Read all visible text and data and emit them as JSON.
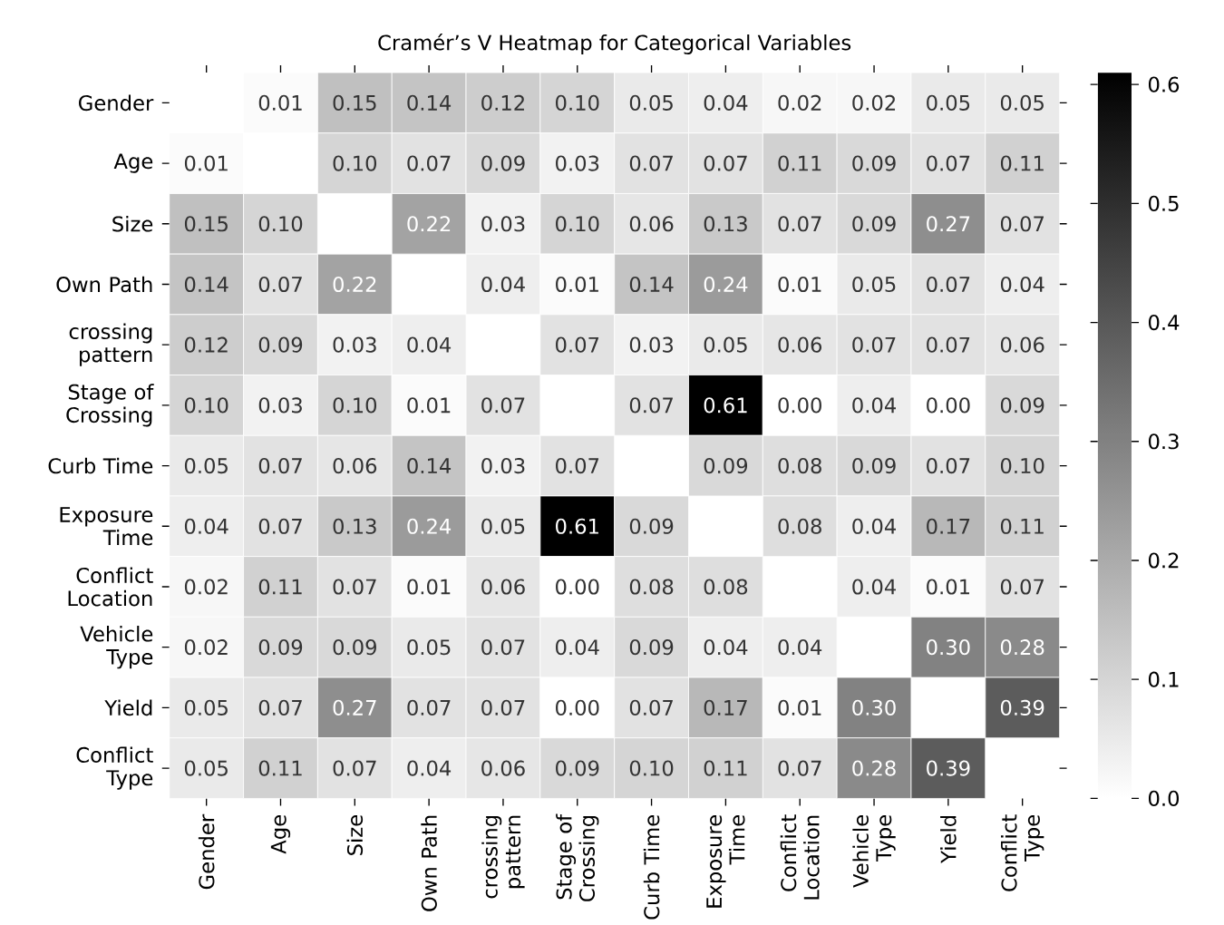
{
  "chart_data": {
    "type": "heatmap",
    "title": "Cramér’s V Heatmap for Categorical Variables",
    "categories": [
      "Gender",
      "Age",
      "Size",
      "Own Path",
      "crossing pattern",
      "Stage of Crossing",
      "Curb Time",
      "Exposure Time",
      "Conflict Location",
      "Vehicle Type",
      "Yield",
      "Conflict Type"
    ],
    "y_categories": [
      "Gender",
      "Age",
      "Size",
      "Own Path",
      "crossing pattern",
      "Stage of Crossing",
      "Curb Time",
      "Exposure Time",
      "Conflict Location",
      "Vehicle Type",
      "Yield",
      "Conflict Type"
    ],
    "cells": [
      [
        null,
        0.01,
        0.15,
        0.14,
        0.12,
        0.1,
        0.05,
        0.04,
        0.02,
        0.02,
        0.05,
        0.05
      ],
      [
        0.01,
        null,
        0.1,
        0.07,
        0.09,
        0.03,
        0.07,
        0.07,
        0.11,
        0.09,
        0.07,
        0.11
      ],
      [
        0.15,
        0.1,
        null,
        0.22,
        0.03,
        0.1,
        0.06,
        0.13,
        0.07,
        0.09,
        0.27,
        0.07
      ],
      [
        0.14,
        0.07,
        0.22,
        null,
        0.04,
        0.01,
        0.14,
        0.24,
        0.01,
        0.05,
        0.07,
        0.04
      ],
      [
        0.12,
        0.09,
        0.03,
        0.04,
        null,
        0.07,
        0.03,
        0.05,
        0.06,
        0.07,
        0.07,
        0.06
      ],
      [
        0.1,
        0.03,
        0.1,
        0.01,
        0.07,
        null,
        0.07,
        0.61,
        0.0,
        0.04,
        0.0,
        0.09
      ],
      [
        0.05,
        0.07,
        0.06,
        0.14,
        0.03,
        0.07,
        null,
        0.09,
        0.08,
        0.09,
        0.07,
        0.1
      ],
      [
        0.04,
        0.07,
        0.13,
        0.24,
        0.05,
        0.61,
        0.09,
        null,
        0.08,
        0.04,
        0.17,
        0.11
      ],
      [
        0.02,
        0.11,
        0.07,
        0.01,
        0.06,
        0.0,
        0.08,
        0.08,
        null,
        0.04,
        0.01,
        0.07
      ],
      [
        0.02,
        0.09,
        0.09,
        0.05,
        0.07,
        0.04,
        0.09,
        0.04,
        0.04,
        null,
        0.3,
        0.28
      ],
      [
        0.05,
        0.07,
        0.27,
        0.07,
        0.07,
        0.0,
        0.07,
        0.17,
        0.01,
        0.3,
        null,
        0.39
      ],
      [
        0.05,
        0.11,
        0.07,
        0.04,
        0.06,
        0.09,
        0.1,
        0.11,
        0.07,
        0.28,
        0.39,
        null
      ]
    ],
    "cell_labels": [
      [
        null,
        "0.01",
        "0.15",
        "0.14",
        "0.12",
        "0.10",
        "0.05",
        "0.04",
        "0.02",
        "0.02",
        "0.05",
        "0.05"
      ],
      [
        "0.01",
        null,
        "0.10",
        "0.07",
        "0.09",
        "0.03",
        "0.07",
        "0.07",
        "0.11",
        "0.09",
        "0.07",
        "0.11"
      ],
      [
        "0.15",
        "0.10",
        null,
        "0.22",
        "0.03",
        "0.10",
        "0.06",
        "0.13",
        "0.07",
        "0.09",
        "0.27",
        "0.07"
      ],
      [
        "0.14",
        "0.07",
        "0.22",
        null,
        "0.04",
        "0.01",
        "0.14",
        "0.24",
        "0.01",
        "0.05",
        "0.07",
        "0.04"
      ],
      [
        "0.12",
        "0.09",
        "0.03",
        "0.04",
        null,
        "0.07",
        "0.03",
        "0.05",
        "0.06",
        "0.07",
        "0.07",
        "0.06"
      ],
      [
        "0.10",
        "0.03",
        "0.10",
        "0.01",
        "0.07",
        null,
        "0.07",
        "0.61",
        "0.00",
        "0.04",
        "0.00",
        "0.09"
      ],
      [
        "0.05",
        "0.07",
        "0.06",
        "0.14",
        "0.03",
        "0.07",
        null,
        "0.09",
        "0.08",
        "0.09",
        "0.07",
        "0.10"
      ],
      [
        "0.04",
        "0.07",
        "0.13",
        "0.24",
        "0.05",
        "0.61",
        "0.09",
        null,
        "0.08",
        "0.04",
        "0.17",
        "0.11"
      ],
      [
        "0.02",
        "0.11",
        "0.07",
        "0.01",
        "0.06",
        "0.00",
        "0.08",
        "0.08",
        null,
        "0.04",
        "0.01",
        "0.07"
      ],
      [
        "0.02",
        "0.09",
        "0.09",
        "0.05",
        "0.07",
        "0.04",
        "0.09",
        "0.04",
        "0.04",
        null,
        "0.30",
        "0.28"
      ],
      [
        "0.05",
        "0.07",
        "0.27",
        "0.07",
        "0.07",
        "0.00",
        "0.07",
        "0.17",
        "0.01",
        "0.30",
        null,
        "0.39"
      ],
      [
        "0.05",
        "0.11",
        "0.07",
        "0.04",
        "0.06",
        "0.09",
        "0.10",
        "0.11",
        "0.07",
        "0.28",
        "0.39",
        null
      ]
    ],
    "clim": [
      0,
      0.61
    ],
    "cticks": [
      {
        "value": 0,
        "label": "0.0"
      },
      {
        "value": 0.1,
        "label": "0.1"
      },
      {
        "value": 0.2,
        "label": "0.2"
      },
      {
        "value": 0.3,
        "label": "0.3"
      },
      {
        "value": 0.4,
        "label": "0.4"
      },
      {
        "value": 0.5,
        "label": "0.5"
      },
      {
        "value": 0.6,
        "label": "0.6"
      }
    ],
    "data_labels": true
  }
}
